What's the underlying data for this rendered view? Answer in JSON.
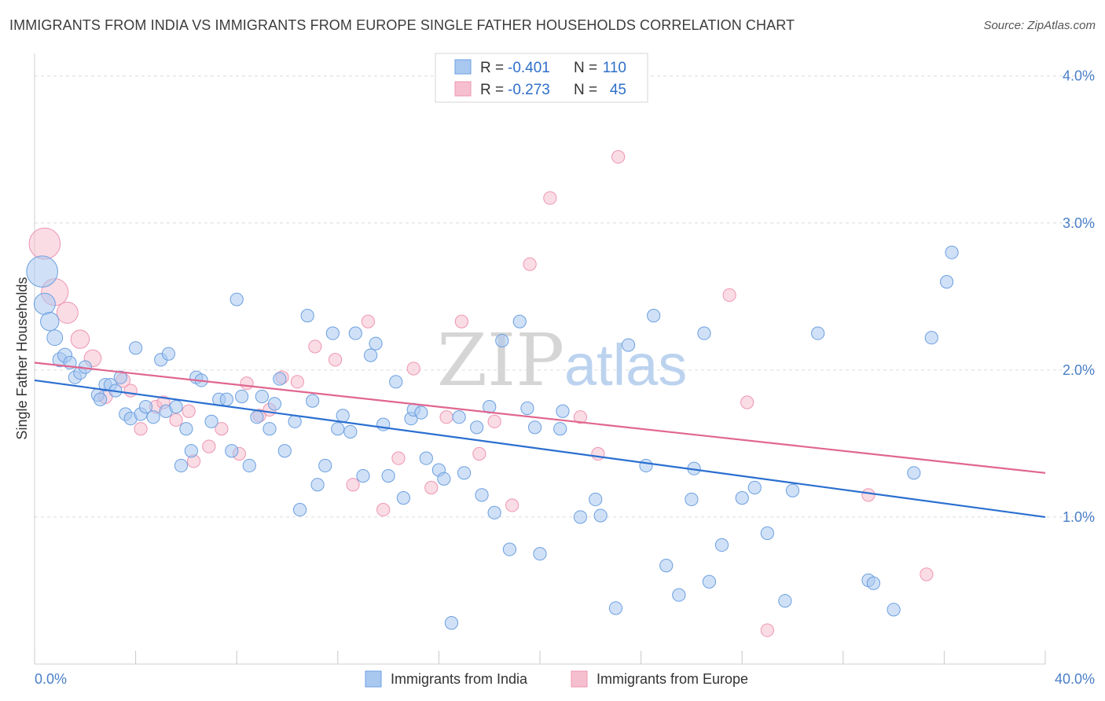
{
  "title": "IMMIGRANTS FROM INDIA VS IMMIGRANTS FROM EUROPE SINGLE FATHER HOUSEHOLDS CORRELATION CHART",
  "source": "Source: ZipAtlas.com",
  "watermark": {
    "zip": "ZIP",
    "atlas": "atlas"
  },
  "colors": {
    "india_fill": "#a9c8f0",
    "india_stroke": "#6b9fe0",
    "india_line": "#2a6fd0",
    "europe_fill": "#f6bfd0",
    "europe_stroke": "#ee95b2",
    "europe_line": "#e0668f",
    "grid": "#dcdcdc",
    "axis_text": "#4a7fc8"
  },
  "stats_box": {
    "rows": [
      {
        "r_label": "R =",
        "r_value": "-0.401",
        "n_label": "N =",
        "n_value": "110"
      },
      {
        "r_label": "R =",
        "r_value": "-0.273",
        "n_label": "N =",
        "n_value": "45"
      }
    ]
  },
  "chart_data": {
    "type": "scatter",
    "xlabel": "",
    "ylabel": "Single Father Households",
    "xlim": [
      0,
      40
    ],
    "ylim": [
      0,
      4.1
    ],
    "x_tick_labels": {
      "min": "0.0%",
      "max": "40.0%"
    },
    "y_ticks": [
      1.0,
      2.0,
      3.0,
      4.0
    ],
    "y_tick_labels": [
      "1.0%",
      "2.0%",
      "3.0%",
      "4.0%"
    ],
    "grid": true,
    "legend_position": "bottom-center",
    "series": [
      {
        "name": "Immigrants from India",
        "color": "#a9c8f0",
        "trend": {
          "x": [
            0,
            40
          ],
          "y": [
            1.93,
            1.0
          ]
        },
        "points": [
          [
            0.3,
            2.67,
            2.2
          ],
          [
            0.4,
            2.45,
            1.5
          ],
          [
            0.6,
            2.33,
            1.3
          ],
          [
            0.8,
            2.22,
            1.1
          ],
          [
            1.0,
            2.07,
            1.0
          ],
          [
            1.2,
            2.1,
            1.0
          ],
          [
            1.4,
            2.05,
            0.9
          ],
          [
            1.6,
            1.95,
            0.9
          ],
          [
            1.8,
            1.98,
            0.9
          ],
          [
            2.0,
            2.02,
            0.9
          ],
          [
            2.5,
            1.83,
            0.9
          ],
          [
            2.6,
            1.8,
            0.9
          ],
          [
            2.8,
            1.9,
            0.9
          ],
          [
            3.0,
            1.9,
            0.9
          ],
          [
            3.2,
            1.86,
            0.9
          ],
          [
            3.4,
            1.95,
            0.9
          ],
          [
            3.6,
            1.7,
            0.9
          ],
          [
            3.8,
            1.67,
            0.9
          ],
          [
            4.0,
            2.15,
            0.9
          ],
          [
            4.2,
            1.7,
            0.9
          ],
          [
            4.4,
            1.75,
            0.9
          ],
          [
            4.7,
            1.68,
            0.9
          ],
          [
            5.0,
            2.07,
            0.9
          ],
          [
            5.2,
            1.72,
            0.9
          ],
          [
            5.3,
            2.11,
            0.9
          ],
          [
            5.6,
            1.75,
            0.9
          ],
          [
            5.8,
            1.35,
            0.9
          ],
          [
            6.0,
            1.6,
            0.9
          ],
          [
            6.2,
            1.45,
            0.9
          ],
          [
            6.4,
            1.95,
            0.9
          ],
          [
            6.6,
            1.93,
            0.9
          ],
          [
            7.0,
            1.65,
            0.9
          ],
          [
            7.3,
            1.8,
            0.9
          ],
          [
            7.6,
            1.8,
            0.9
          ],
          [
            7.8,
            1.45,
            0.9
          ],
          [
            8.0,
            2.48,
            0.9
          ],
          [
            8.2,
            1.82,
            0.9
          ],
          [
            8.5,
            1.35,
            0.9
          ],
          [
            8.8,
            1.68,
            0.9
          ],
          [
            9.0,
            1.82,
            0.9
          ],
          [
            9.3,
            1.6,
            0.9
          ],
          [
            9.5,
            1.77,
            0.9
          ],
          [
            9.7,
            1.94,
            0.9
          ],
          [
            9.9,
            1.45,
            0.9
          ],
          [
            10.3,
            1.65,
            0.9
          ],
          [
            10.5,
            1.05,
            0.9
          ],
          [
            10.8,
            2.37,
            0.9
          ],
          [
            11.0,
            1.79,
            0.9
          ],
          [
            11.2,
            1.22,
            0.9
          ],
          [
            11.5,
            1.35,
            0.9
          ],
          [
            11.8,
            2.25,
            0.9
          ],
          [
            12.0,
            1.6,
            0.9
          ],
          [
            12.2,
            1.69,
            0.9
          ],
          [
            12.5,
            1.58,
            0.9
          ],
          [
            12.7,
            2.25,
            0.9
          ],
          [
            13.0,
            1.28,
            0.9
          ],
          [
            13.3,
            2.1,
            0.9
          ],
          [
            13.5,
            2.18,
            0.9
          ],
          [
            13.8,
            1.63,
            0.9
          ],
          [
            14.0,
            1.28,
            0.9
          ],
          [
            14.3,
            1.92,
            0.9
          ],
          [
            14.6,
            1.13,
            0.9
          ],
          [
            14.9,
            1.67,
            0.9
          ],
          [
            15.0,
            1.73,
            0.9
          ],
          [
            15.3,
            1.71,
            0.9
          ],
          [
            15.5,
            1.4,
            0.9
          ],
          [
            16.0,
            1.32,
            0.9
          ],
          [
            16.2,
            1.26,
            0.9
          ],
          [
            16.5,
            0.28,
            0.9
          ],
          [
            16.8,
            1.68,
            0.9
          ],
          [
            17.0,
            1.3,
            0.9
          ],
          [
            17.5,
            1.61,
            0.9
          ],
          [
            17.7,
            1.15,
            0.9
          ],
          [
            18.0,
            1.75,
            0.9
          ],
          [
            18.2,
            1.03,
            0.9
          ],
          [
            18.5,
            2.2,
            0.9
          ],
          [
            18.8,
            0.78,
            0.9
          ],
          [
            19.2,
            2.33,
            0.9
          ],
          [
            19.5,
            1.74,
            0.9
          ],
          [
            19.8,
            1.61,
            0.9
          ],
          [
            20.0,
            0.75,
            0.9
          ],
          [
            20.8,
            1.6,
            0.9
          ],
          [
            20.9,
            1.72,
            0.9
          ],
          [
            21.6,
            1.0,
            0.9
          ],
          [
            22.2,
            1.12,
            0.9
          ],
          [
            22.4,
            1.01,
            0.9
          ],
          [
            23.0,
            0.38,
            0.9
          ],
          [
            23.5,
            2.17,
            0.9
          ],
          [
            24.2,
            1.35,
            0.9
          ],
          [
            24.5,
            2.37,
            0.9
          ],
          [
            25.0,
            0.67,
            0.9
          ],
          [
            25.5,
            0.47,
            0.9
          ],
          [
            26.0,
            1.12,
            0.9
          ],
          [
            26.1,
            1.33,
            0.9
          ],
          [
            26.5,
            2.25,
            0.9
          ],
          [
            26.7,
            0.56,
            0.9
          ],
          [
            27.2,
            0.81,
            0.9
          ],
          [
            28.0,
            1.13,
            0.9
          ],
          [
            28.5,
            1.2,
            0.9
          ],
          [
            29.0,
            0.89,
            0.9
          ],
          [
            29.7,
            0.43,
            0.9
          ],
          [
            30.0,
            1.18,
            0.9
          ],
          [
            31.0,
            2.25,
            0.9
          ],
          [
            33.0,
            0.57,
            0.9
          ],
          [
            33.2,
            0.55,
            0.9
          ],
          [
            34.0,
            0.37,
            0.9
          ],
          [
            34.8,
            1.3,
            0.9
          ],
          [
            35.5,
            2.22,
            0.9
          ],
          [
            36.1,
            2.6,
            0.9
          ],
          [
            36.3,
            2.8,
            0.9
          ]
        ]
      },
      {
        "name": "Immigrants from Europe",
        "color": "#f6bfd0",
        "trend": {
          "x": [
            0,
            40
          ],
          "y": [
            2.05,
            1.3
          ]
        },
        "points": [
          [
            0.4,
            2.86,
            2.2
          ],
          [
            0.8,
            2.53,
            1.9
          ],
          [
            1.3,
            2.39,
            1.5
          ],
          [
            1.8,
            2.21,
            1.3
          ],
          [
            2.3,
            2.08,
            1.2
          ],
          [
            2.8,
            1.82,
            1.0
          ],
          [
            3.5,
            1.93,
            1.0
          ],
          [
            3.8,
            1.86,
            0.9
          ],
          [
            4.2,
            1.6,
            0.9
          ],
          [
            4.8,
            1.75,
            0.9
          ],
          [
            5.1,
            1.78,
            0.9
          ],
          [
            5.6,
            1.66,
            0.9
          ],
          [
            6.1,
            1.72,
            0.9
          ],
          [
            6.3,
            1.38,
            0.9
          ],
          [
            6.9,
            1.48,
            0.9
          ],
          [
            7.4,
            1.6,
            0.9
          ],
          [
            8.1,
            1.43,
            0.9
          ],
          [
            8.4,
            1.91,
            0.9
          ],
          [
            8.9,
            1.69,
            0.9
          ],
          [
            9.3,
            1.73,
            0.9
          ],
          [
            9.8,
            1.95,
            0.9
          ],
          [
            10.4,
            1.92,
            0.9
          ],
          [
            11.1,
            2.16,
            0.9
          ],
          [
            11.9,
            2.07,
            0.9
          ],
          [
            12.6,
            1.22,
            0.9
          ],
          [
            13.2,
            2.33,
            0.9
          ],
          [
            13.8,
            1.05,
            0.9
          ],
          [
            14.4,
            1.4,
            0.9
          ],
          [
            15.0,
            2.01,
            0.9
          ],
          [
            15.7,
            1.2,
            0.9
          ],
          [
            16.3,
            1.68,
            0.9
          ],
          [
            16.9,
            2.33,
            0.9
          ],
          [
            17.6,
            1.43,
            0.9
          ],
          [
            18.2,
            1.65,
            0.9
          ],
          [
            18.9,
            1.08,
            0.9
          ],
          [
            19.6,
            2.72,
            0.9
          ],
          [
            20.4,
            3.17,
            0.9
          ],
          [
            21.6,
            1.68,
            0.9
          ],
          [
            22.3,
            1.43,
            0.9
          ],
          [
            23.1,
            3.45,
            0.9
          ],
          [
            27.5,
            2.51,
            0.9
          ],
          [
            28.2,
            1.78,
            0.9
          ],
          [
            29.0,
            0.23,
            0.9
          ],
          [
            33.0,
            1.15,
            0.9
          ],
          [
            35.3,
            0.61,
            0.9
          ]
        ]
      }
    ]
  }
}
